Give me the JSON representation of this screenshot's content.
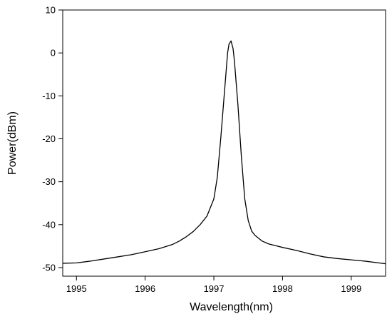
{
  "chart_data": {
    "type": "line",
    "title": "",
    "xlabel": "Wavelength(nm)",
    "ylabel": "Power(dBm)",
    "xlim": [
      1994.8,
      1999.5
    ],
    "ylim": [
      -52,
      10
    ],
    "xticks": [
      1995,
      1996,
      1997,
      1998,
      1999
    ],
    "yticks": [
      10,
      0,
      -10,
      -20,
      -30,
      -40,
      -50
    ],
    "grid": false,
    "legend": "none",
    "line_color": "#000000",
    "series": [
      {
        "x": [
          1994.8,
          1995.0,
          1995.2,
          1995.4,
          1995.6,
          1995.8,
          1996.0,
          1996.2,
          1996.4,
          1996.5,
          1996.6,
          1996.7,
          1996.8,
          1996.9,
          1997.0,
          1997.05,
          1997.1,
          1997.15,
          1997.2,
          1997.22,
          1997.25,
          1997.28,
          1997.3,
          1997.35,
          1997.4,
          1997.45,
          1997.5,
          1997.55,
          1997.6,
          1997.7,
          1997.8,
          1997.9,
          1998.0,
          1998.2,
          1998.4,
          1998.6,
          1998.8,
          1999.0,
          1999.2,
          1999.4,
          1999.5
        ],
        "y": [
          -49.0,
          -48.9,
          -48.5,
          -48.0,
          -47.5,
          -47.0,
          -46.3,
          -45.6,
          -44.6,
          -43.8,
          -42.8,
          -41.6,
          -40.0,
          -38.0,
          -34.0,
          -29.0,
          -20.0,
          -10.0,
          0.0,
          2.0,
          2.8,
          1.0,
          -2.0,
          -12.0,
          -24.0,
          -34.0,
          -39.0,
          -41.5,
          -42.5,
          -43.8,
          -44.5,
          -44.9,
          -45.3,
          -46.0,
          -46.8,
          -47.5,
          -47.9,
          -48.2,
          -48.5,
          -48.9,
          -49.1
        ]
      }
    ]
  }
}
